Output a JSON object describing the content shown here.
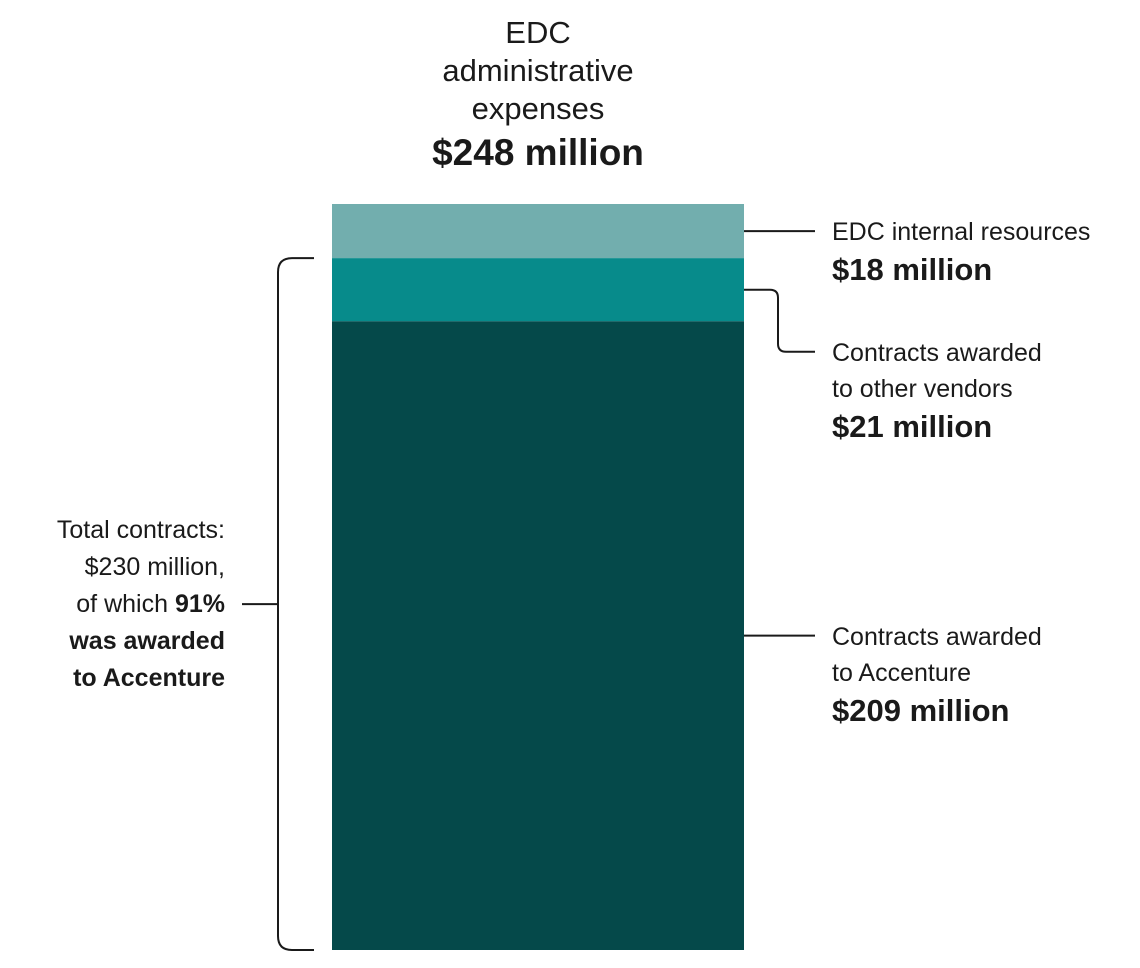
{
  "chart_data": {
    "type": "bar",
    "stacked": true,
    "title_lines": [
      "EDC",
      "administrative",
      "expenses"
    ],
    "title_total": "$248 million",
    "total": 248,
    "unit": "million",
    "segments": [
      {
        "name": "EDC internal resources",
        "value": 18,
        "value_label": "$18 million",
        "color": "#72aeae",
        "label_lines": [
          "EDC internal resources"
        ]
      },
      {
        "name": "Contracts awarded to other vendors",
        "value": 21,
        "value_label": "$21 million",
        "color": "#078b8b",
        "label_lines": [
          "Contracts awarded",
          "to other vendors"
        ]
      },
      {
        "name": "Contracts awarded to Accenture",
        "value": 209,
        "value_label": "$209 million",
        "color": "#05494a",
        "label_lines": [
          "Contracts awarded",
          "to Accenture"
        ]
      }
    ],
    "bracket_note": {
      "line1": "Total contracts:",
      "line2": "$230 million,",
      "line3_prefix": "of which ",
      "line3_bold": "91%",
      "line4": "was awarded",
      "line5": "to Accenture",
      "total_contracts": 230,
      "accenture_share_percent": 91
    }
  }
}
